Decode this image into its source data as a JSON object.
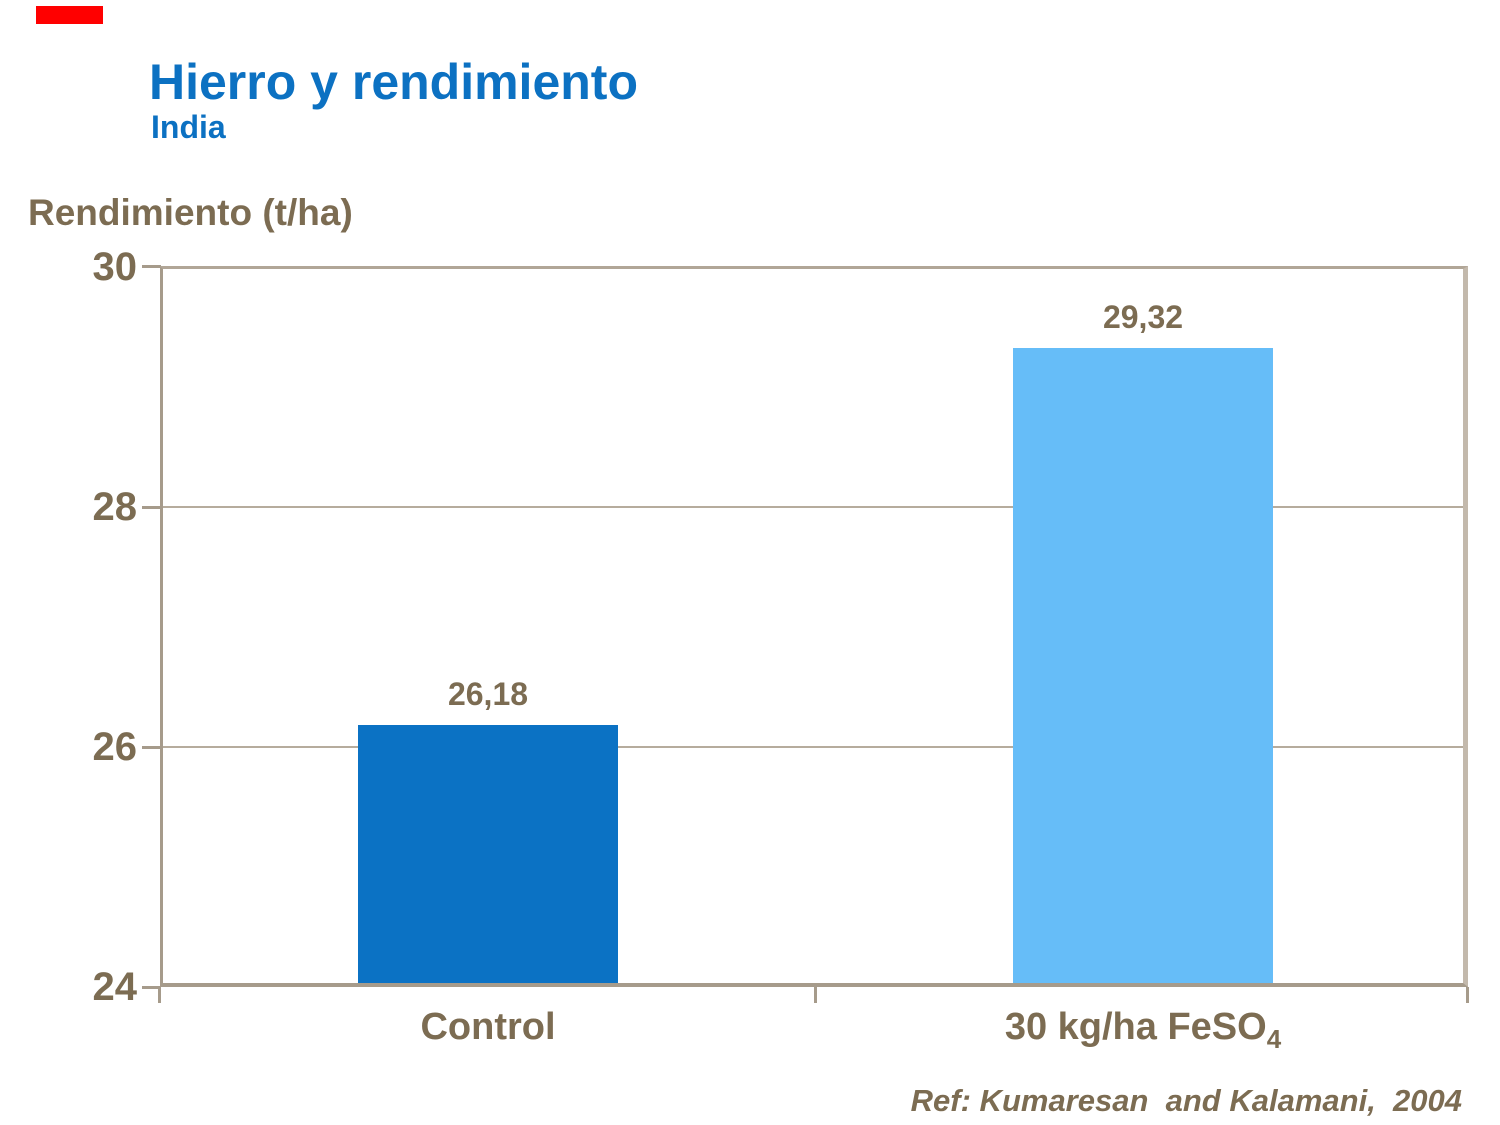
{
  "marker": {
    "color": "#FF0000"
  },
  "colors": {
    "title_blue": "#0C71C2",
    "text_brown": "#7C6C52",
    "axis_line": "#A69B8B",
    "frame_top": "#B1A697",
    "frame_right": "#C3B9AC",
    "gridline": "#B6AC9D"
  },
  "chart_data": {
    "type": "bar",
    "title": "Hierro y rendimiento",
    "subtitle": "India",
    "xlabel": "",
    "ylabel": "Rendimiento (t/ha)",
    "ylim": [
      24,
      30
    ],
    "yticks": [
      "30",
      "28",
      "26",
      "24"
    ],
    "ytick_values": [
      30,
      28,
      26,
      24
    ],
    "grid": true,
    "legend": false,
    "categories": [
      "Control",
      "30 kg/ha FeSO4"
    ],
    "category_labels": [
      {
        "main": "Control",
        "sub": ""
      },
      {
        "main": "30 kg/ha FeSO",
        "sub": "4"
      }
    ],
    "values": [
      26.18,
      29.32
    ],
    "value_labels": [
      "26,18",
      "29,32"
    ],
    "bar_colors": [
      "#0B72C4",
      "#66BDF8"
    ],
    "annotation": "Ref: Kumaresan  and Kalamani,  2004"
  }
}
